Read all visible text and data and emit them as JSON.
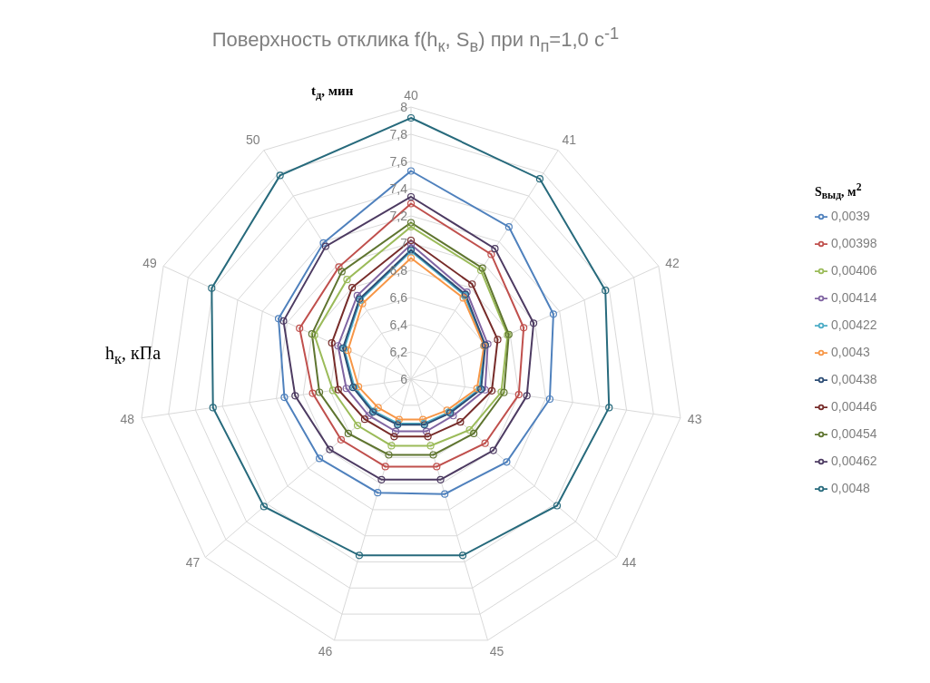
{
  "chart_data": {
    "type": "radar",
    "title": "Поверхность отклика f(h$_{к}$, S$_{в}$) при n$_{п}$=1,0 с$^{-1}$",
    "ylabel": "t$_{д}$, мин",
    "xlabel": "h$_{к}$, кПа",
    "legend_title": "S$_{выд}$, м$^{2}$",
    "categories": [
      "40",
      "41",
      "42",
      "43",
      "44",
      "45",
      "46",
      "47",
      "48",
      "49",
      "50"
    ],
    "ylim": [
      6,
      8
    ],
    "yticks": [
      6,
      {
        "value": 6.2,
        "label": "6,2"
      },
      {
        "value": 6.4,
        "label": "6,4"
      },
      {
        "value": 6.6,
        "label": "6,6"
      },
      {
        "value": 6.8,
        "label": "6,8"
      },
      7,
      {
        "value": 7.2,
        "label": "7,2"
      },
      {
        "value": 7.4,
        "label": "7,4"
      },
      {
        "value": 7.6,
        "label": "7,6"
      },
      {
        "value": 7.8,
        "label": "7,8"
      },
      8
    ],
    "grid": true,
    "legend": "right",
    "marker": "circle",
    "series": [
      {
        "name": "0,0039",
        "color": "#4f81bd",
        "values": [
          7.53,
          7.33,
          7.15,
          7.03,
          6.93,
          6.88,
          6.87,
          6.89,
          6.94,
          7.07,
          7.19
        ]
      },
      {
        "name": "0,00398",
        "color": "#c0504d",
        "values": [
          7.29,
          7.09,
          6.91,
          6.8,
          6.72,
          6.67,
          6.67,
          6.68,
          6.73,
          6.9,
          6.98
        ]
      },
      {
        "name": "0,00406",
        "color": "#9bbb59",
        "values": [
          7.12,
          6.95,
          6.78,
          6.67,
          6.57,
          6.51,
          6.51,
          6.52,
          6.58,
          6.78,
          6.87
        ]
      },
      {
        "name": "0,00414",
        "color": "#8064a2",
        "values": [
          6.99,
          6.76,
          6.62,
          6.55,
          6.41,
          6.4,
          6.4,
          6.41,
          6.48,
          6.59,
          6.73
        ]
      },
      {
        "name": "0,00422",
        "color": "#4bacc6",
        "values": [
          6.94,
          6.73,
          6.59,
          6.51,
          6.37,
          6.34,
          6.34,
          6.36,
          6.42,
          6.54,
          6.69
        ]
      },
      {
        "name": "0,0043",
        "color": "#f79646",
        "values": [
          6.89,
          6.71,
          6.59,
          6.49,
          6.35,
          6.31,
          6.31,
          6.32,
          6.39,
          6.51,
          6.66
        ]
      },
      {
        "name": "0,00438",
        "color": "#2c4d75",
        "values": [
          6.95,
          6.74,
          6.6,
          6.52,
          6.38,
          6.35,
          6.35,
          6.37,
          6.43,
          6.55,
          6.7
        ]
      },
      {
        "name": "0,00446",
        "color": "#772c2a",
        "values": [
          7.02,
          6.83,
          6.7,
          6.6,
          6.48,
          6.44,
          6.44,
          6.45,
          6.54,
          6.64,
          6.8
        ]
      },
      {
        "name": "0,00454",
        "color": "#5f7530",
        "values": [
          7.15,
          6.97,
          6.79,
          6.69,
          6.61,
          6.58,
          6.58,
          6.61,
          6.68,
          6.8,
          6.94
        ]
      },
      {
        "name": "0,00462",
        "color": "#4d3b62",
        "values": [
          7.34,
          7.14,
          6.99,
          6.86,
          6.8,
          6.77,
          6.77,
          6.79,
          6.86,
          7.03,
          7.16
        ]
      },
      {
        "name": "0,0048",
        "color": "#276a7c",
        "values": [
          7.92,
          7.75,
          7.57,
          7.47,
          7.42,
          7.35,
          7.35,
          7.43,
          7.47,
          7.61,
          7.78
        ]
      }
    ]
  }
}
